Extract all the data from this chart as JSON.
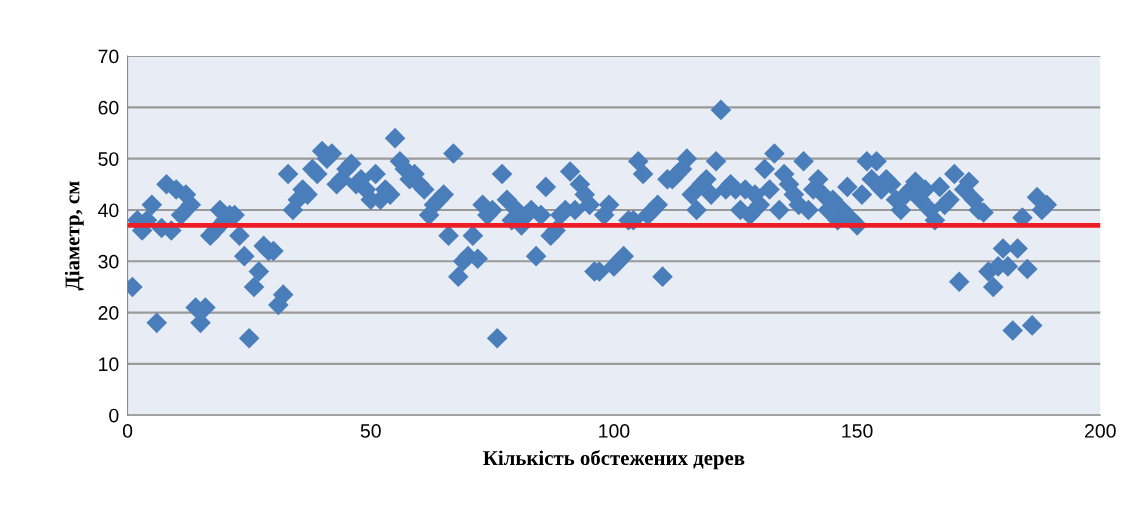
{
  "chart_data": {
    "type": "scatter",
    "xlabel": "Кількість обстежених дерев",
    "ylabel": "Діаметр, см",
    "x": [
      1,
      2,
      3,
      4,
      5,
      6,
      7,
      8,
      9,
      10,
      11,
      12,
      13,
      14,
      15,
      16,
      17,
      18,
      19,
      20,
      21,
      22,
      23,
      24,
      25,
      26,
      27,
      28,
      29,
      30,
      31,
      32,
      33,
      34,
      35,
      36,
      37,
      38,
      39,
      40,
      41,
      42,
      43,
      44,
      45,
      46,
      47,
      48,
      49,
      50,
      51,
      52,
      53,
      54,
      55,
      56,
      57,
      58,
      59,
      60,
      61,
      62,
      63,
      64,
      65,
      66,
      67,
      68,
      69,
      70,
      71,
      72,
      73,
      74,
      75,
      76,
      77,
      78,
      79,
      80,
      81,
      82,
      83,
      84,
      85,
      86,
      87,
      88,
      89,
      90,
      91,
      92,
      93,
      94,
      95,
      96,
      97,
      98,
      99,
      100,
      101,
      102,
      103,
      104,
      105,
      106,
      107,
      108,
      109,
      110,
      111,
      112,
      113,
      114,
      115,
      116,
      117,
      118,
      119,
      120,
      121,
      122,
      123,
      124,
      125,
      126,
      127,
      128,
      129,
      130,
      131,
      132,
      133,
      134,
      135,
      136,
      137,
      138,
      139,
      140,
      141,
      142,
      143,
      144,
      145,
      146,
      147,
      148,
      149,
      150,
      151,
      152,
      153,
      154,
      155,
      156,
      157,
      158,
      159,
      160,
      161,
      162,
      163,
      164,
      165,
      166,
      167,
      168,
      169,
      170,
      171,
      172,
      173,
      174,
      175,
      176,
      177,
      178,
      179,
      180,
      181,
      182,
      183,
      184,
      185,
      186,
      187,
      188,
      189
    ],
    "series": [
      {
        "color": "#4a7ebb",
        "values": [
          25,
          38,
          36,
          38,
          41,
          18,
          36.5,
          45,
          36,
          44,
          39,
          43,
          41,
          21,
          18,
          21,
          35,
          36,
          40,
          38,
          39,
          39,
          35,
          31,
          15,
          25,
          28,
          33,
          32,
          32,
          21.5,
          23.5,
          47,
          40,
          42,
          44,
          43,
          48,
          47,
          51.5,
          50,
          51,
          45,
          46,
          48,
          49,
          45,
          46,
          44,
          42,
          47,
          42,
          44,
          43,
          54,
          49.5,
          48,
          46,
          47,
          45,
          44,
          39,
          41,
          42,
          43,
          35,
          51,
          27,
          30,
          31,
          35,
          30.5,
          41,
          39,
          40,
          15,
          47,
          42,
          38,
          40,
          37,
          39,
          40,
          31,
          39,
          44.5,
          35,
          36,
          39,
          40,
          47.5,
          40,
          45,
          43,
          41,
          28,
          28,
          39,
          41,
          29,
          30,
          31,
          38,
          38,
          49.5,
          47,
          39,
          40,
          41,
          27,
          46,
          46,
          47,
          48,
          50,
          43,
          40,
          45,
          46,
          43,
          49.5,
          59.5,
          44,
          45,
          44,
          40,
          44,
          39,
          43,
          41,
          48,
          44,
          51,
          40,
          47,
          45,
          43,
          41,
          49.5,
          40,
          44,
          46,
          43,
          40,
          42,
          38,
          40,
          44.5,
          38,
          37,
          43,
          49.5,
          46,
          49.5,
          44,
          46,
          45,
          42,
          40,
          43,
          44,
          45.5,
          42,
          44,
          40,
          38,
          44.5,
          41,
          42,
          47,
          26,
          44,
          45.5,
          42,
          40,
          39.5,
          28,
          25,
          29,
          32.5,
          29,
          16.5,
          32.5,
          38.5,
          28.5,
          17.5,
          42.5,
          40,
          41
        ]
      }
    ],
    "marker": "diamond",
    "xlim": [
      0,
      200
    ],
    "xticks": [
      0,
      50,
      100,
      150,
      200
    ],
    "ylim": [
      0,
      70
    ],
    "yticks": [
      0,
      10,
      20,
      30,
      40,
      50,
      60,
      70
    ],
    "grid": "y",
    "ref_lines": [
      {
        "axis": "y",
        "value": 37,
        "color": "#ee1c25",
        "line_style": "solid"
      }
    ]
  }
}
